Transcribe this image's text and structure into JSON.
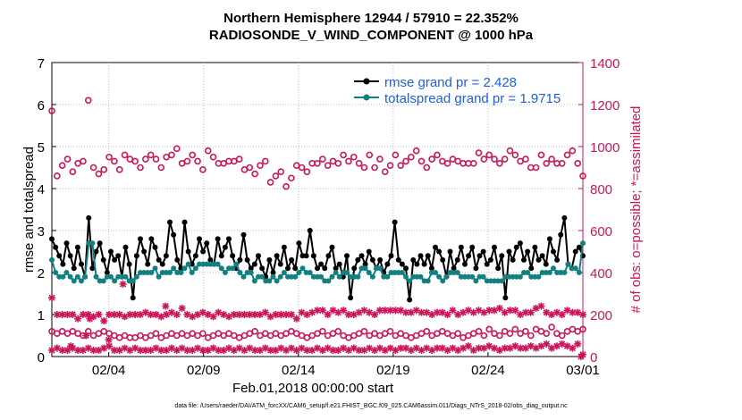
{
  "chart_data": {
    "type": "line",
    "title_line1": "Northern Hemisphere 12944 / 57910 = 22.352%",
    "title_line2": "RADIOSONDE_V_WIND_COMPONENT @ 1000 hPa",
    "xlabel": "Feb.01,2018 00:00:00 start",
    "ylabel_left": "rmse and totalspread",
    "ylabel_right": "# of obs: o=possible; *=assimilated",
    "x_tick_labels": [
      "02/04",
      "02/09",
      "02/14",
      "02/19",
      "02/24",
      "03/01"
    ],
    "x_tick_days": [
      3,
      8,
      13,
      18,
      23,
      28
    ],
    "xlim_days": [
      0,
      28
    ],
    "ylim_left": [
      0,
      7
    ],
    "ylim_right": [
      0,
      1400
    ],
    "y_ticks_left": [
      "0",
      "1",
      "2",
      "3",
      "4",
      "5",
      "6",
      "7"
    ],
    "y_ticks_right": [
      "0",
      "200",
      "400",
      "600",
      "800",
      "1000",
      "1200",
      "1400"
    ],
    "interval_days": 0.25,
    "series": [
      {
        "name": "rmse",
        "legend": "rmse grand pr = 2.428",
        "color": "#000000",
        "values": [
          2.8,
          2.6,
          2.4,
          2.2,
          2.7,
          2.4,
          2.1,
          2.6,
          2.2,
          1.9,
          3.3,
          2.1,
          2.5,
          2.7,
          2.3,
          2.0,
          2.5,
          2.3,
          2.4,
          1.9,
          2.6,
          2.2,
          1.4,
          2.4,
          2.8,
          2.5,
          2.2,
          2.8,
          2.6,
          2.3,
          2.2,
          2.4,
          3.2,
          2.9,
          2.3,
          2.1,
          3.2,
          2.5,
          2.2,
          2.4,
          2.8,
          2.5,
          2.7,
          2.3,
          2.2,
          2.8,
          2.4,
          2.6,
          2.8,
          2.4,
          2.1,
          2.3,
          2.9,
          2.3,
          2.1,
          2.2,
          2.4,
          2.1,
          1.9,
          2.3,
          2.0,
          2.4,
          2.2,
          2.6,
          2.1,
          2.3,
          2.1,
          2.7,
          2.4,
          2.4,
          3.0,
          2.4,
          2.1,
          2.2,
          2.1,
          2.4,
          2.6,
          2.1,
          2.2,
          1.9,
          2.4,
          1.4,
          2.1,
          2.3,
          2.4,
          2.2,
          2.5,
          2.3,
          2.1,
          2.3,
          2.0,
          2.2,
          2.4,
          3.2,
          2.3,
          2.2,
          2.1,
          1.35,
          2.3,
          2.2,
          2.4,
          2.2,
          2.4,
          2.1,
          2.6,
          2.5,
          2.3,
          1.9,
          2.5,
          2.1,
          2.3,
          2.6,
          2.2,
          2.4,
          2.6,
          2.1,
          2.4,
          2.5,
          2.2,
          2.3,
          2.6,
          2.1,
          2.4,
          1.4,
          2.5,
          2.3,
          2.6,
          2.7,
          2.3,
          2.5,
          2.1,
          2.6,
          2.3,
          2.4,
          2.2,
          2.8,
          2.5,
          2.3,
          2.9,
          3.3,
          2.2,
          2.1,
          2.5,
          2.6,
          2.4
        ]
      },
      {
        "name": "totalspread",
        "legend": "totalspread grand pr = 1.9715",
        "color": "#138080",
        "values": [
          2.3,
          2.0,
          1.9,
          1.9,
          2.0,
          1.9,
          1.8,
          1.9,
          1.8,
          1.9,
          2.7,
          2.7,
          1.9,
          1.8,
          1.8,
          1.9,
          1.9,
          1.8,
          1.9,
          1.9,
          1.9,
          1.8,
          1.8,
          1.9,
          2.0,
          2.0,
          2.0,
          2.0,
          2.1,
          1.9,
          2.0,
          2.0,
          2.0,
          2.1,
          2.0,
          2.0,
          2.1,
          2.2,
          2.0,
          2.1,
          2.2,
          2.2,
          2.2,
          2.2,
          2.2,
          2.2,
          2.1,
          2.0,
          2.1,
          2.1,
          2.2,
          2.0,
          1.9,
          2.0,
          2.0,
          1.8,
          1.9,
          1.9,
          1.8,
          1.8,
          1.9,
          1.8,
          1.9,
          2.0,
          1.9,
          1.9,
          1.9,
          2.0,
          2.1,
          2.0,
          2.0,
          1.9,
          1.9,
          1.9,
          1.8,
          1.8,
          1.9,
          2.0,
          1.9,
          2.0,
          2.0,
          1.9,
          1.9,
          1.9,
          2.1,
          2.1,
          2.0,
          1.9,
          2.1,
          2.1,
          1.9,
          1.9,
          2.0,
          2.0,
          2.0,
          2.0,
          1.9,
          1.8,
          1.9,
          1.9,
          1.9,
          1.8,
          1.8,
          2.0,
          2.0,
          1.9,
          1.8,
          1.9,
          2.0,
          2.0,
          2.0,
          1.9,
          1.9,
          1.9,
          1.9,
          1.8,
          1.9,
          1.9,
          1.8,
          1.8,
          1.8,
          1.8,
          1.8,
          1.9,
          1.9,
          1.9,
          1.9,
          1.9,
          2.0,
          2.0,
          1.9,
          1.9,
          1.9,
          2.0,
          2.0,
          2.0,
          2.1,
          2.0,
          2.0,
          2.0,
          2.2,
          2.1,
          2.1,
          2.0,
          2.7
        ]
      }
    ],
    "obs_possible": [
      1170,
      860,
      910,
      940,
      880,
      920,
      930,
      1220,
      900,
      870,
      890,
      950,
      930,
      890,
      960,
      940,
      930,
      900,
      940,
      960,
      940,
      900,
      950,
      960,
      990,
      920,
      930,
      960,
      930,
      890,
      980,
      950,
      920,
      920,
      930,
      930,
      940,
      890,
      900,
      870,
      910,
      930,
      830,
      860,
      880,
      810,
      850,
      910,
      900,
      880,
      920,
      920,
      940,
      910,
      930,
      920,
      960,
      930,
      950,
      920,
      900,
      960,
      900,
      940,
      880,
      910,
      960,
      910,
      930,
      950,
      980,
      930,
      900,
      940,
      960,
      930,
      920,
      940,
      930,
      920,
      920,
      920,
      970,
      940,
      960,
      940,
      920,
      940,
      980,
      960,
      930,
      940,
      900,
      900,
      960,
      920,
      940,
      920,
      920,
      960,
      980,
      920,
      860
    ],
    "obs_possible_low": [
      120,
      110,
      120,
      110,
      120,
      110,
      100,
      120,
      100,
      110,
      120,
      110,
      100,
      90,
      100,
      90,
      90,
      100,
      90,
      100,
      110,
      90,
      100,
      110,
      100,
      110,
      100,
      110,
      100,
      110,
      90,
      100,
      110,
      100,
      110,
      100,
      90,
      100,
      110,
      120,
      100,
      110,
      100,
      110,
      100,
      110,
      120,
      110,
      100,
      90,
      100,
      110,
      120,
      100,
      110,
      120,
      100,
      90,
      100,
      110,
      120,
      100,
      110,
      100,
      110,
      120,
      100,
      110,
      100,
      90,
      100,
      110,
      120,
      100,
      110,
      120,
      110,
      100,
      110,
      90,
      100,
      110,
      120,
      100,
      130,
      110,
      100,
      120,
      110,
      130,
      110,
      120,
      100,
      130,
      120,
      110,
      140,
      110,
      100,
      120,
      130,
      120,
      130
    ],
    "obs_assim_mid": [
      280,
      200,
      200,
      200,
      200,
      180,
      200,
      200,
      190,
      200,
      170,
      200,
      200,
      200,
      190,
      200,
      200,
      200,
      210,
      200,
      200,
      190,
      200,
      210,
      200,
      230,
      200,
      190,
      200,
      210,
      200,
      190,
      210,
      200,
      190,
      200,
      200,
      200,
      200,
      200,
      200,
      210,
      190,
      200,
      200,
      200,
      200,
      180,
      210,
      200,
      210,
      220,
      220,
      200,
      220,
      210,
      220,
      200,
      200,
      210,
      220,
      210,
      200,
      220,
      220,
      220,
      220,
      220,
      210,
      210,
      220,
      210,
      210,
      200,
      210,
      210,
      200,
      220,
      200,
      210,
      220,
      210,
      220,
      210,
      220,
      220,
      230,
      210,
      220,
      220,
      200,
      210,
      210,
      230,
      240,
      210,
      200,
      210,
      200,
      220,
      210,
      210,
      200
    ],
    "obs_assim_low": [
      30,
      40,
      30,
      30,
      40,
      30,
      30,
      40,
      30,
      30,
      40,
      50,
      30,
      30,
      40,
      30,
      40,
      30,
      30,
      30,
      40,
      30,
      30,
      40,
      30,
      40,
      30,
      30,
      40,
      30,
      30,
      40,
      30,
      30,
      40,
      30,
      40,
      30,
      40,
      30,
      30,
      40,
      30,
      30,
      40,
      30,
      40,
      30,
      40,
      30,
      30,
      40,
      30,
      40,
      30,
      30,
      40,
      30,
      40,
      30,
      30,
      40,
      30,
      40,
      30,
      40,
      30,
      40,
      40,
      30,
      40,
      30,
      40,
      30,
      40,
      40,
      30,
      40,
      30,
      40,
      50,
      30,
      40,
      40,
      50,
      40,
      30,
      40,
      40,
      50,
      40,
      40,
      50,
      40,
      50,
      60,
      40,
      50,
      60,
      50,
      40,
      60,
      10
    ],
    "obs_assim_special": [
      [
        1.0,
        50
      ],
      [
        1.8,
        100
      ],
      [
        3.0,
        80
      ],
      [
        3.75,
        345
      ],
      [
        27.9,
        0
      ]
    ],
    "obs_assim_high": [
      [
        2.0,
        180
      ],
      [
        6.0,
        240
      ]
    ],
    "colors": {
      "rmse": "#000000",
      "spread": "#138080",
      "obs": "#cc1458",
      "legend_text": "#1f5fe0"
    }
  },
  "footer": "data file: /Users/raeder/DAI/ATM_forcXX/CAM6_setup/f.e21.FHIST_BGC.f09_025.CAM6assim.011/Diags_NTrS_2018-02/obs_diag_output.nc"
}
